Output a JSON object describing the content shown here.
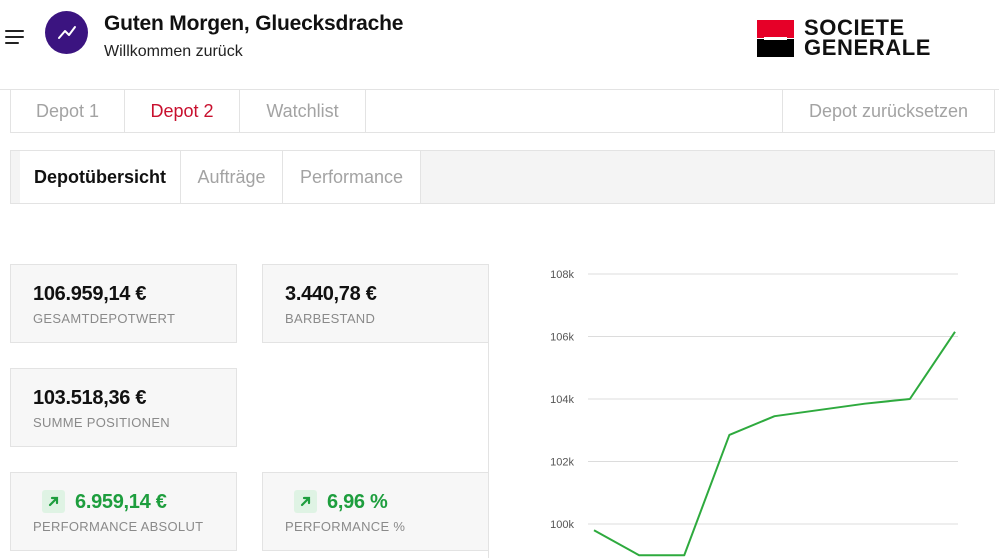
{
  "header": {
    "greeting": "Guten Morgen, Gluecksdrache",
    "subtitle": "Willkommen zurück",
    "avatar_icon": "trending-up-icon",
    "avatar_color": "#3b1480",
    "logo": {
      "line1": "SOCIETE",
      "line2": "GENERALE",
      "red": "#e60028"
    }
  },
  "depot_tabs": {
    "items": [
      {
        "label": "Depot 1",
        "active": false
      },
      {
        "label": "Depot 2",
        "active": true
      },
      {
        "label": "Watchlist",
        "active": false
      }
    ],
    "reset_label": "Depot zurücksetzen",
    "active_color": "#c8102e"
  },
  "sub_tabs": {
    "items": [
      {
        "label": "Depotübersicht",
        "active": true
      },
      {
        "label": "Aufträge",
        "active": false
      },
      {
        "label": "Performance",
        "active": false
      }
    ]
  },
  "cards": {
    "gesamtdepotwert": {
      "value": "106.959,14 €",
      "label": "GESAMTDEPOTWERT"
    },
    "barbestand": {
      "value": "3.440,78 €",
      "label": "BARBESTAND"
    },
    "summe_positionen": {
      "value": "103.518,36 €",
      "label": "SUMME POSITIONEN"
    },
    "performance_absolut": {
      "value": "6.959,14 €",
      "label": "PERFORMANCE ABSOLUT",
      "trend_icon": "arrow-up-right-icon"
    },
    "performance_prozent": {
      "value": "6,96 %",
      "label": "PERFORMANCE %",
      "trend_icon": "arrow-up-right-icon"
    },
    "positive_color": "#1e9e3e"
  },
  "chart_data": {
    "type": "line",
    "y_ticks": [
      "100k",
      "102k",
      "104k",
      "106k",
      "108k"
    ],
    "y_tick_values": [
      100000,
      102000,
      104000,
      106000,
      108000
    ],
    "ylim": [
      100000,
      108000
    ],
    "series": [
      {
        "color": "#2eaa3e",
        "points": [
          [
            0,
            99800
          ],
          [
            1,
            99000
          ],
          [
            2,
            99000
          ],
          [
            3,
            102850
          ],
          [
            4,
            103450
          ],
          [
            5,
            103650
          ],
          [
            6,
            103850
          ],
          [
            7,
            104000
          ],
          [
            8,
            106150
          ]
        ]
      }
    ],
    "grid": true
  }
}
